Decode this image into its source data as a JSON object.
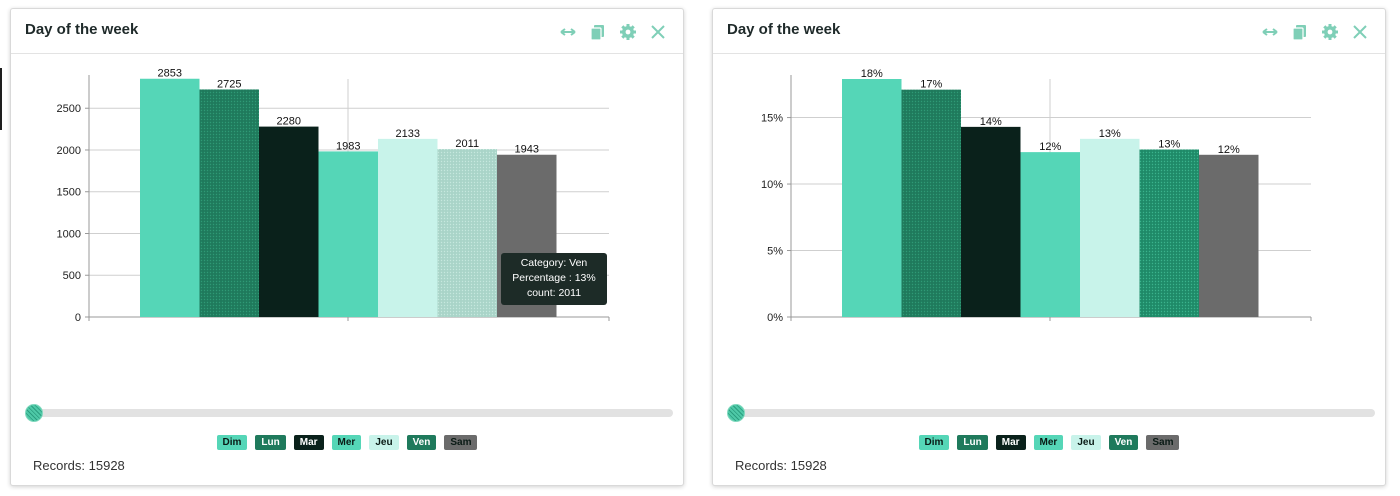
{
  "panels": [
    {
      "title": "Day of the week",
      "records_label": "Records: 15928",
      "tooltip": {
        "line1": "Category: Ven",
        "line2": "Percentage : 13%",
        "line3": "count: 2011"
      }
    },
    {
      "title": "Day of the week",
      "records_label": "Records: 15928"
    }
  ],
  "legend": [
    {
      "label": "Dim",
      "color": "#55d6b7"
    },
    {
      "label": "Lun",
      "color": "#1f7a5c"
    },
    {
      "label": "Mar",
      "color": "#0a211b"
    },
    {
      "label": "Mer",
      "color": "#55d6b7"
    },
    {
      "label": "Jeu",
      "color": "#c8f3ea"
    },
    {
      "label": "Ven",
      "color": "#1f7a5c"
    },
    {
      "label": "Sam",
      "color": "#6b6b6b"
    }
  ],
  "icons": {
    "expand": "expand-horizontal-icon",
    "copy": "copy-icon",
    "settings": "gear-icon",
    "close": "close-icon"
  },
  "colors": {
    "accent": "#7fcfb7",
    "grid": "#cccccc"
  },
  "chart_data": [
    {
      "type": "bar",
      "title": "Day of the week",
      "categories": [
        "Dim",
        "Lun",
        "Mar",
        "Mer",
        "Jeu",
        "Ven",
        "Sam"
      ],
      "values": [
        2853,
        2725,
        2280,
        1983,
        2133,
        2011,
        1943
      ],
      "labels": [
        "2853",
        "2725",
        "2280",
        "1983",
        "2133",
        "2011",
        "1943"
      ],
      "ylim": [
        0,
        2850
      ],
      "yticks": [
        0,
        500,
        1000,
        1500,
        2000,
        2500
      ],
      "ytick_labels": [
        "0",
        "500",
        "1000",
        "1500",
        "2000",
        "2500"
      ],
      "grid": true,
      "highlighted": "Ven"
    },
    {
      "type": "bar",
      "title": "Day of the week",
      "categories": [
        "Dim",
        "Lun",
        "Mar",
        "Mer",
        "Jeu",
        "Ven",
        "Sam"
      ],
      "values": [
        17.9,
        17.1,
        14.3,
        12.4,
        13.4,
        12.6,
        12.2
      ],
      "labels": [
        "18%",
        "17%",
        "14%",
        "12%",
        "13%",
        "13%",
        "12%"
      ],
      "ylim": [
        0,
        17.9
      ],
      "yticks": [
        0,
        5,
        10,
        15
      ],
      "ytick_labels": [
        "0%",
        "5%",
        "10%",
        "15%"
      ],
      "grid": true
    }
  ]
}
